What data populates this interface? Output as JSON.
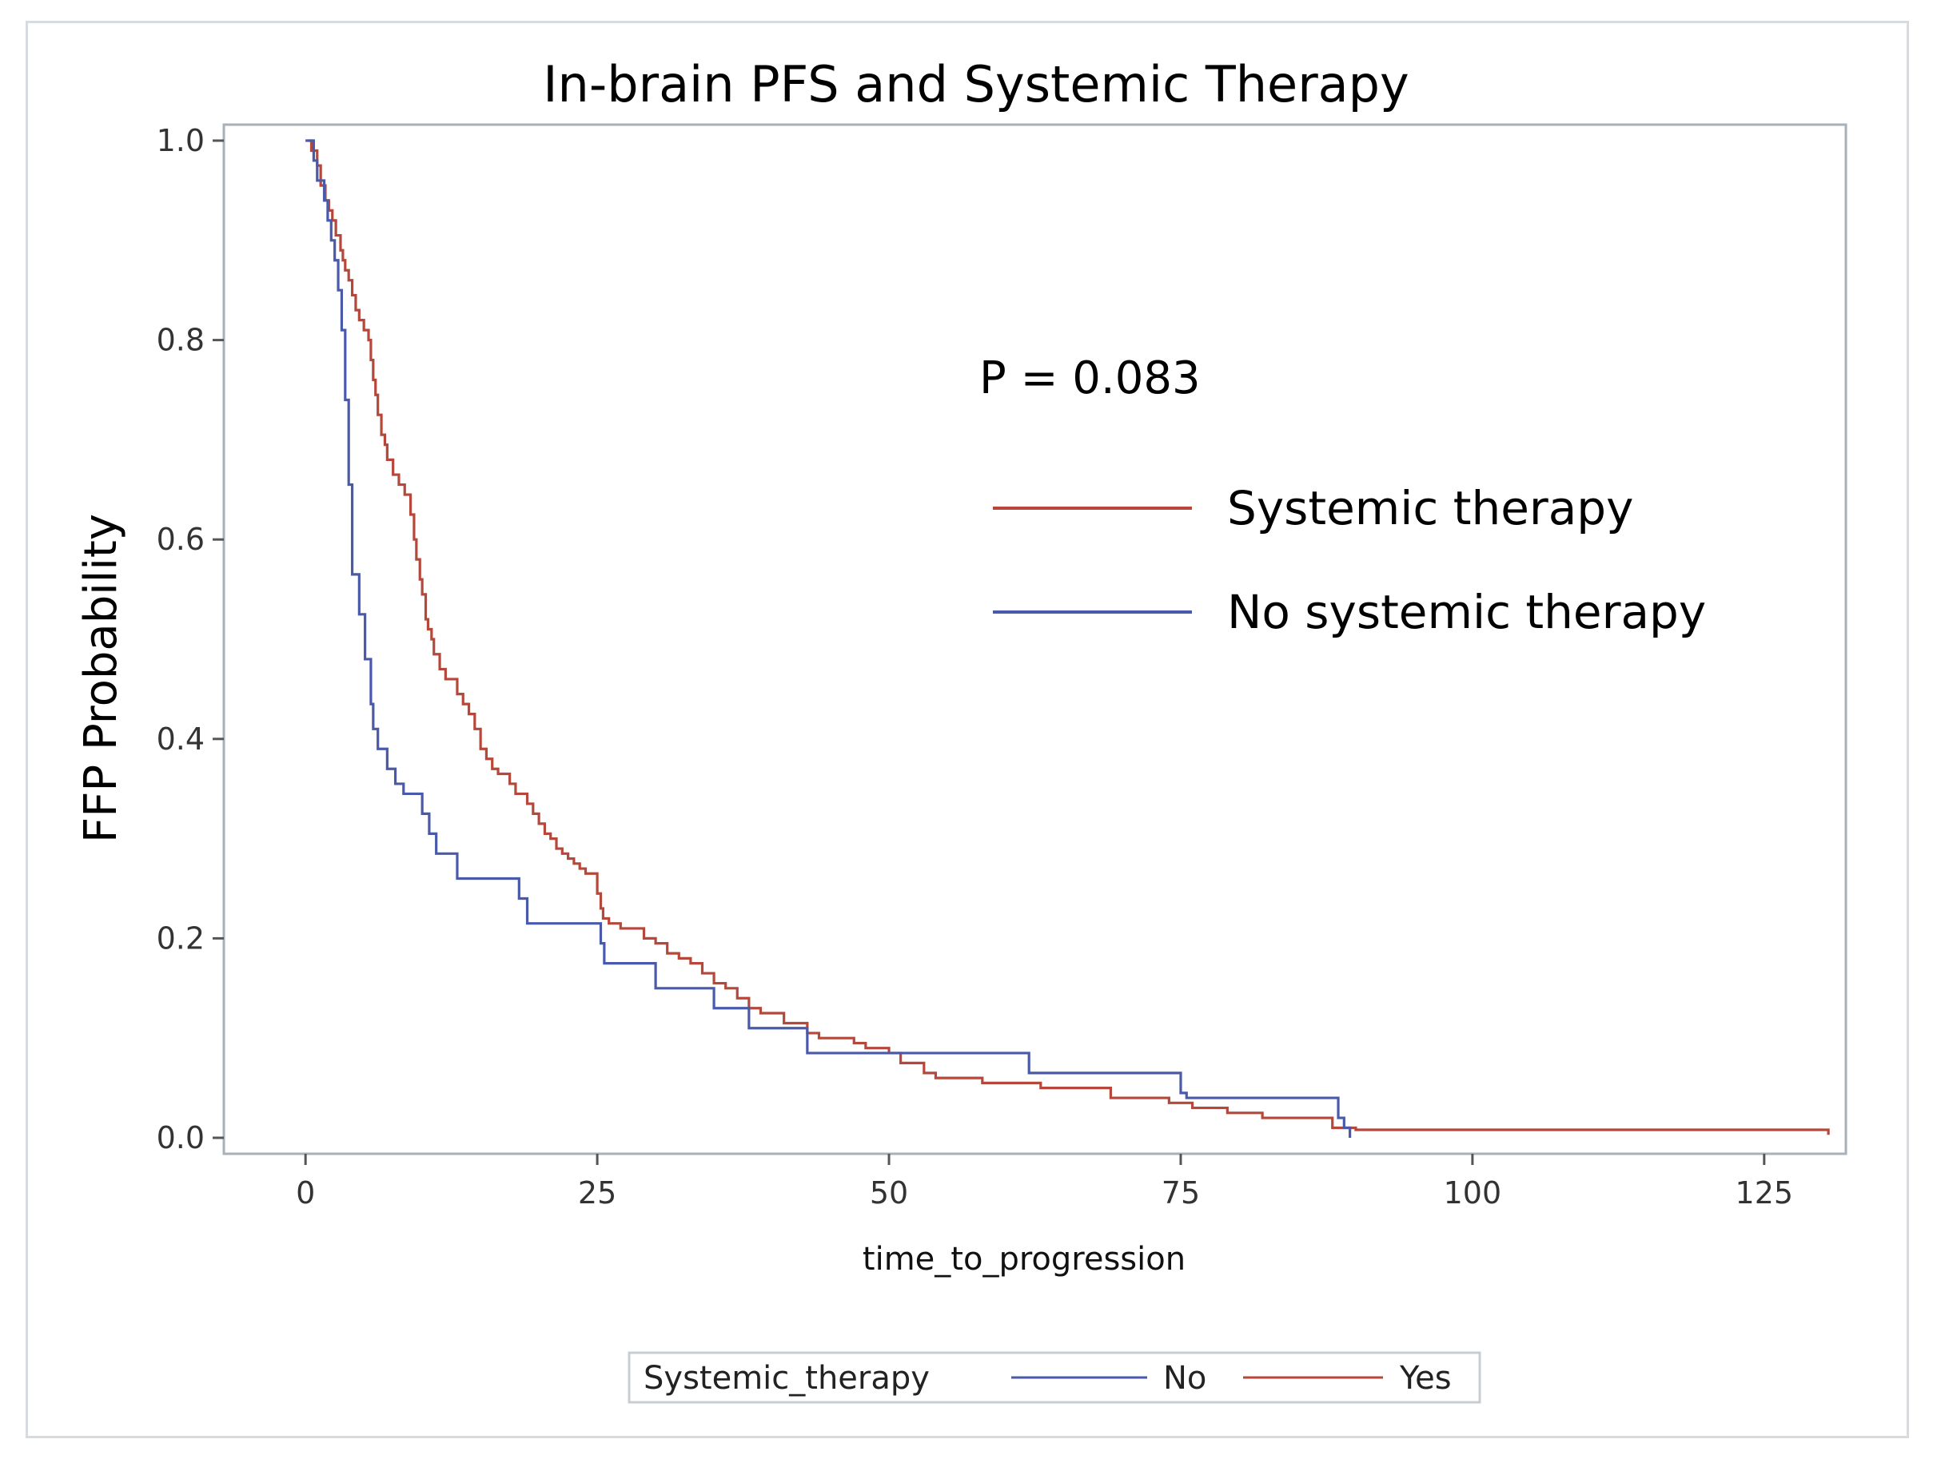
{
  "chart_data": {
    "type": "line",
    "title": "In-brain PFS and Systemic Therapy",
    "xlabel": "time_to_progression",
    "ylabel": "FFP Probability",
    "xlim": [
      -7,
      132
    ],
    "ylim": [
      0,
      1.0
    ],
    "x_ticks": [
      "0",
      "25",
      "50",
      "75",
      "100",
      "125"
    ],
    "y_ticks": [
      "0.0",
      "0.2",
      "0.4",
      "0.6",
      "0.8",
      "1.0"
    ],
    "x_tick_values": [
      0,
      25,
      50,
      75,
      100,
      125
    ],
    "y_tick_values": [
      0,
      0.2,
      0.4,
      0.6,
      0.8,
      1.0
    ],
    "grid": false,
    "annotation": "P = 0.083",
    "legend_inside": [
      {
        "label": "Systemic therapy",
        "color": "#b5483a"
      },
      {
        "label": "No systemic therapy",
        "color": "#4a5aaa"
      }
    ],
    "legend_bottom": {
      "title": "Systemic_therapy",
      "entries": [
        {
          "label": "No",
          "color": "#4a5aaa"
        },
        {
          "label": "Yes",
          "color": "#b5483a"
        }
      ],
      "placement": "bottom-center"
    },
    "series": [
      {
        "name": "Yes",
        "color": "#b5483a",
        "step_x": [
          0.3,
          0.5,
          1.0,
          1.3,
          1.7,
          2.0,
          2.3,
          2.6,
          3.0,
          3.2,
          3.4,
          3.7,
          4.0,
          4.3,
          4.6,
          5.0,
          5.4,
          5.6,
          5.8,
          6.0,
          6.2,
          6.5,
          6.8,
          7.0,
          7.5,
          8.0,
          8.5,
          9.0,
          9.3,
          9.5,
          9.8,
          10.0,
          10.3,
          10.5,
          10.8,
          11.0,
          11.5,
          12.0,
          13.0,
          13.5,
          14.0,
          14.5,
          15.0,
          15.5,
          16.0,
          16.5,
          17.5,
          18.0,
          19.0,
          19.5,
          20.0,
          20.5,
          21.0,
          21.5,
          22.0,
          22.5,
          23.0,
          23.5,
          24.0,
          25.0,
          25.3,
          25.5,
          26.0,
          27.0,
          29.0,
          30.0,
          31.0,
          32.0,
          33.0,
          34.0,
          35.0,
          36.0,
          37.0,
          38.0,
          39.0,
          41.0,
          43.0,
          44.0,
          47.0,
          48.0,
          50.0,
          51.0,
          53.0,
          54.0,
          58.0,
          63.0,
          69.0,
          74.0,
          76.0,
          79.0,
          82.0,
          88.0,
          90.0,
          130.5
        ],
        "step_y": [
          1.0,
          0.99,
          0.975,
          0.955,
          0.94,
          0.93,
          0.92,
          0.905,
          0.89,
          0.88,
          0.87,
          0.86,
          0.845,
          0.83,
          0.82,
          0.81,
          0.8,
          0.78,
          0.76,
          0.745,
          0.725,
          0.705,
          0.695,
          0.68,
          0.665,
          0.655,
          0.645,
          0.625,
          0.6,
          0.58,
          0.56,
          0.545,
          0.52,
          0.51,
          0.5,
          0.485,
          0.47,
          0.46,
          0.445,
          0.435,
          0.425,
          0.41,
          0.39,
          0.38,
          0.37,
          0.365,
          0.355,
          0.345,
          0.335,
          0.325,
          0.315,
          0.305,
          0.3,
          0.29,
          0.285,
          0.28,
          0.275,
          0.27,
          0.265,
          0.245,
          0.23,
          0.22,
          0.215,
          0.21,
          0.2,
          0.195,
          0.185,
          0.18,
          0.175,
          0.165,
          0.155,
          0.15,
          0.14,
          0.13,
          0.125,
          0.115,
          0.105,
          0.1,
          0.095,
          0.09,
          0.085,
          0.075,
          0.065,
          0.06,
          0.055,
          0.05,
          0.04,
          0.035,
          0.03,
          0.025,
          0.02,
          0.01,
          0.008,
          0.003
        ]
      },
      {
        "name": "No",
        "color": "#4a5aaa",
        "step_x": [
          0.0,
          0.7,
          1.0,
          1.6,
          1.9,
          2.2,
          2.5,
          2.8,
          3.1,
          3.4,
          3.7,
          4.0,
          4.6,
          5.1,
          5.6,
          5.8,
          6.2,
          7.0,
          7.7,
          8.4,
          10.0,
          10.6,
          11.2,
          13.0,
          18.3,
          19.0,
          25.3,
          25.6,
          30.0,
          35.0,
          38.0,
          43.0,
          62.0,
          75.0,
          75.5,
          88.5,
          89.0,
          89.5
        ],
        "step_y": [
          1.0,
          0.98,
          0.96,
          0.94,
          0.92,
          0.9,
          0.88,
          0.85,
          0.81,
          0.74,
          0.655,
          0.565,
          0.525,
          0.48,
          0.435,
          0.41,
          0.39,
          0.37,
          0.355,
          0.345,
          0.325,
          0.305,
          0.285,
          0.26,
          0.24,
          0.215,
          0.195,
          0.175,
          0.15,
          0.13,
          0.11,
          0.085,
          0.065,
          0.045,
          0.04,
          0.02,
          0.01,
          0.0
        ]
      }
    ]
  }
}
